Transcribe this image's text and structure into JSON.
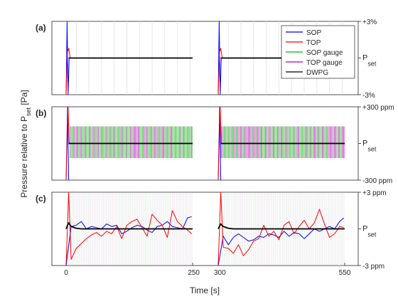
{
  "figure": {
    "shared_ylabel_main": "Pressure relative to P",
    "shared_ylabel_sub": "set",
    "shared_ylabel_unit": " [Pa]",
    "xlabel": "Time [s]",
    "colors": {
      "SOP": "#0000ff",
      "TOP": "#ff0000",
      "SOP gauge": "#00b000",
      "TOP gauge": "#b000b0",
      "DWPG": "#000000",
      "vline_colors": [
        "#cfe0cf",
        "#e3c9e3",
        "#d6d6d6"
      ]
    }
  },
  "chart_data": [
    {
      "panel": "(a)",
      "type": "line",
      "ylim_label_top": "+3%",
      "ylim_label_bottom": "-3%",
      "ylim": [
        -3,
        3
      ],
      "y_unit": "%",
      "center_label": "P",
      "center_label_sub": "set",
      "xlim": [
        0,
        550
      ],
      "xticks": [
        0,
        250,
        300,
        550
      ],
      "xtick_labels": [
        "0",
        "250",
        "300",
        "550"
      ],
      "segments": [
        [
          0,
          250
        ],
        [
          300,
          550
        ]
      ],
      "grid": "vertical",
      "legend": {
        "placement": "top-right",
        "entries": [
          "SOP",
          "TOP",
          "SOP gauge",
          "TOP gauge",
          "DWPG"
        ]
      },
      "series": [
        {
          "name": "SOP",
          "x": [
            0,
            2,
            4,
            6,
            10,
            250,
            300,
            302,
            304,
            306,
            310,
            550
          ],
          "y": [
            -3,
            3,
            -3,
            0,
            0,
            0,
            -3,
            3,
            -3,
            0,
            0,
            0
          ]
        },
        {
          "name": "TOP",
          "x": [
            0,
            3,
            5,
            8,
            250,
            300,
            303,
            305,
            308,
            550
          ],
          "y": [
            -3,
            0.5,
            0.8,
            0,
            0,
            -3,
            0.5,
            0.8,
            0,
            0
          ]
        },
        {
          "name": "DWPG",
          "x": [
            5,
            250,
            305,
            550
          ],
          "y": [
            0,
            0,
            0,
            0
          ]
        }
      ]
    },
    {
      "panel": "(b)",
      "type": "line",
      "ylim_label_top": "+300 ppm",
      "ylim_label_bottom": "-300 ppm",
      "ylim": [
        -300,
        300
      ],
      "y_unit": "ppm",
      "center_label": "P",
      "center_label_sub": "set",
      "xlim": [
        0,
        550
      ],
      "segments": [
        [
          0,
          250
        ],
        [
          300,
          550
        ]
      ],
      "gauge_band": [
        -120,
        140
      ],
      "series": [
        {
          "name": "SOP",
          "x": [
            0,
            3,
            5,
            300,
            303,
            305
          ],
          "y": [
            -300,
            300,
            -300,
            -300,
            300,
            -300
          ]
        },
        {
          "name": "TOP",
          "x": [
            0,
            4,
            6,
            300,
            304,
            306
          ],
          "y": [
            -300,
            300,
            0,
            -300,
            300,
            0
          ]
        },
        {
          "name": "DWPG",
          "x": [
            5,
            250,
            305,
            550
          ],
          "y": [
            0,
            0,
            0,
            0
          ]
        }
      ]
    },
    {
      "panel": "(c)",
      "type": "line",
      "ylim_label_top": "+3 ppm",
      "ylim_label_bottom": "-3 ppm",
      "ylim": [
        -3,
        3
      ],
      "y_unit": "ppm",
      "center_label": "P",
      "center_label_sub": "set",
      "xlim": [
        0,
        550
      ],
      "segments": [
        [
          0,
          250
        ],
        [
          300,
          550
        ]
      ],
      "series": [
        {
          "name": "SOP",
          "x": [
            0,
            10,
            20,
            30,
            40,
            50,
            60,
            70,
            80,
            90,
            100,
            110,
            120,
            130,
            140,
            150,
            160,
            170,
            180,
            190,
            200,
            210,
            220,
            230,
            240,
            248
          ],
          "y": [
            -3,
            0.2,
            0.3,
            0.6,
            0.0,
            0.2,
            0.1,
            0.0,
            0.4,
            0.2,
            0.3,
            -0.4,
            -0.2,
            0.1,
            0.3,
            0.2,
            -0.1,
            -0.3,
            0.2,
            0.3,
            0.6,
            0.2,
            0.1,
            0.0,
            0.9,
            1.0
          ]
        },
        {
          "name": "SOP2",
          "x": [
            300,
            310,
            320,
            330,
            340,
            350,
            360,
            370,
            380,
            390,
            400,
            410,
            420,
            430,
            440,
            450,
            460,
            470,
            480,
            490,
            500,
            510,
            520,
            530,
            540,
            548
          ],
          "y": [
            -3,
            -0.6,
            -1.3,
            -0.7,
            -0.4,
            -0.7,
            -1.0,
            -0.9,
            -0.6,
            -0.7,
            -0.4,
            -0.5,
            -0.7,
            -0.2,
            -0.6,
            -0.3,
            -0.4,
            -0.8,
            -0.4,
            0.0,
            -0.2,
            0.0,
            0.2,
            0.0,
            0.6,
            0.9
          ]
        },
        {
          "name": "TOP",
          "x": [
            0,
            5,
            10,
            20,
            30,
            40,
            50,
            60,
            70,
            80,
            90,
            100,
            110,
            120,
            130,
            140,
            150,
            160,
            170,
            180,
            190,
            200,
            210,
            220,
            230,
            240,
            248
          ],
          "y": [
            -3,
            3,
            -2.5,
            -1.6,
            -1.2,
            -0.8,
            -0.5,
            -0.3,
            -0.6,
            -0.2,
            -0.4,
            0.2,
            -0.8,
            0.3,
            0.6,
            0.8,
            0.1,
            -0.6,
            1.2,
            0.7,
            0.3,
            -0.7,
            1.5,
            0.6,
            0.2,
            -0.1,
            -0.4
          ]
        },
        {
          "name": "TOP2",
          "x": [
            300,
            305,
            310,
            320,
            330,
            340,
            350,
            360,
            370,
            380,
            390,
            400,
            410,
            420,
            430,
            440,
            450,
            460,
            470,
            480,
            490,
            500,
            510,
            520,
            530,
            540,
            548
          ],
          "y": [
            -3,
            3,
            -1.5,
            -1.6,
            -2.0,
            -1.3,
            -2.2,
            -1.7,
            -1.0,
            -0.8,
            0.3,
            -0.6,
            -0.2,
            -0.9,
            0.3,
            0.6,
            -0.4,
            0.2,
            0.7,
            0.0,
            0.5,
            1.6,
            0.4,
            -0.7,
            -0.4,
            0.2,
            0.1
          ]
        },
        {
          "name": "DWPG",
          "x": [
            0,
            5,
            10,
            20,
            30,
            40,
            250,
            300,
            305,
            310,
            320,
            330,
            550
          ],
          "y": [
            0,
            0.5,
            0.2,
            0.05,
            0,
            0,
            0,
            0,
            0.4,
            0.2,
            0.05,
            0,
            0
          ]
        }
      ]
    }
  ]
}
